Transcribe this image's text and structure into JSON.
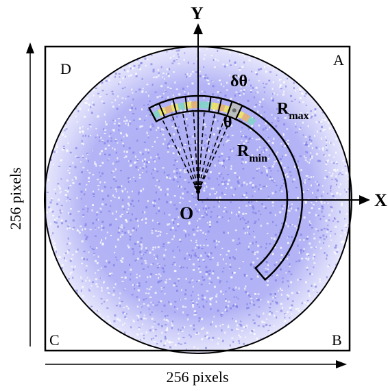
{
  "diagram": {
    "corners": {
      "a": "A",
      "b": "B",
      "c": "C",
      "d": "D"
    },
    "axes": {
      "y": "Y",
      "x": "X",
      "origin": "O"
    },
    "labels": {
      "dtheta": "δθ",
      "theta": "θ",
      "rmax_main": "R",
      "rmax_sub": "max",
      "rmin_main": "R",
      "rmin_sub": "min"
    },
    "dimensions": {
      "width_label": "256 pixels",
      "height_label": "256 pixels"
    },
    "colors": {
      "speckle": "#8a8aee",
      "speckle_dark": "#6e6ee0",
      "ring_hot": "#f3e85a",
      "ring_warm": "#e9b36a",
      "ring_cool": "#7fd6c6",
      "highlight_cell": "#bdbdbd"
    }
  }
}
